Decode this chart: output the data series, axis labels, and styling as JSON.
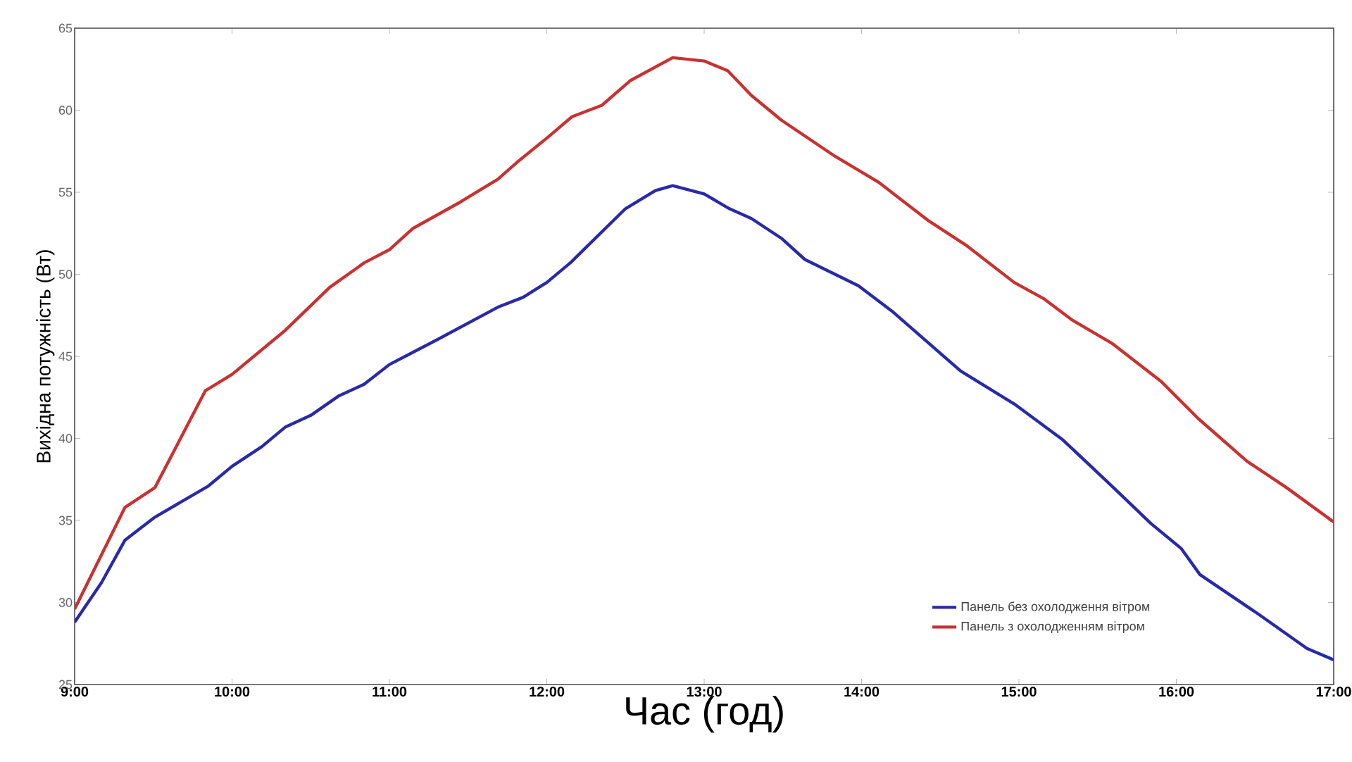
{
  "chart_data": {
    "type": "line",
    "xlabel": "Час (год)",
    "ylabel": "Вихідна потужність (Вт)",
    "xlim": [
      9,
      17
    ],
    "ylim": [
      25,
      65
    ],
    "xticks": [
      {
        "value": 9,
        "label": "9:00"
      },
      {
        "value": 10,
        "label": "10:00"
      },
      {
        "value": 11,
        "label": "11:00"
      },
      {
        "value": 12,
        "label": "12:00"
      },
      {
        "value": 13,
        "label": "13:00"
      },
      {
        "value": 14,
        "label": "14:00"
      },
      {
        "value": 15,
        "label": "15:00"
      },
      {
        "value": 16,
        "label": "16:00"
      },
      {
        "value": 17,
        "label": "17:00"
      }
    ],
    "yticks": [
      25,
      30,
      35,
      40,
      45,
      50,
      55,
      60,
      65
    ],
    "grid": false,
    "legend": "bottom right",
    "series": [
      {
        "name": "Панель без охолодження вітром",
        "color": "#2a2aa8",
        "x": [
          9.0,
          9.17,
          9.32,
          9.51,
          9.85,
          10.0,
          10.19,
          10.34,
          10.5,
          10.68,
          10.84,
          11.0,
          11.3,
          11.69,
          11.85,
          12.0,
          12.15,
          12.5,
          12.69,
          12.8,
          13.0,
          13.16,
          13.3,
          13.49,
          13.64,
          13.98,
          14.2,
          14.63,
          14.97,
          15.28,
          15.59,
          15.84,
          16.03,
          16.15,
          16.52,
          16.83,
          17.0
        ],
        "values": [
          28.8,
          31.2,
          33.8,
          35.2,
          37.1,
          38.3,
          39.5,
          40.7,
          41.4,
          42.6,
          43.3,
          44.5,
          46.0,
          48.0,
          48.6,
          49.5,
          50.7,
          54.0,
          55.1,
          55.4,
          54.9,
          54.0,
          53.4,
          52.2,
          50.9,
          49.3,
          47.7,
          44.1,
          42.1,
          39.9,
          37.1,
          34.8,
          33.3,
          31.7,
          29.3,
          27.2,
          26.5
        ]
      },
      {
        "name": "Панель з охолодженням вітром",
        "color": "#c83232",
        "x": [
          9.0,
          9.32,
          9.51,
          9.83,
          10.0,
          10.34,
          10.62,
          10.84,
          11.0,
          11.15,
          11.45,
          11.69,
          11.82,
          12.0,
          12.16,
          12.35,
          12.53,
          12.8,
          13.0,
          13.15,
          13.3,
          13.49,
          13.83,
          14.11,
          14.42,
          14.66,
          14.97,
          15.16,
          15.34,
          15.59,
          15.9,
          16.14,
          16.45,
          16.7,
          17.0
        ],
        "values": [
          29.6,
          35.8,
          37.0,
          42.9,
          43.9,
          46.6,
          49.2,
          50.7,
          51.5,
          52.8,
          54.4,
          55.8,
          56.9,
          58.3,
          59.6,
          60.3,
          61.8,
          63.2,
          63.0,
          62.4,
          60.9,
          59.4,
          57.2,
          55.6,
          53.3,
          51.8,
          49.5,
          48.5,
          47.2,
          45.8,
          43.5,
          41.2,
          38.6,
          37.0,
          34.9
        ]
      }
    ]
  }
}
